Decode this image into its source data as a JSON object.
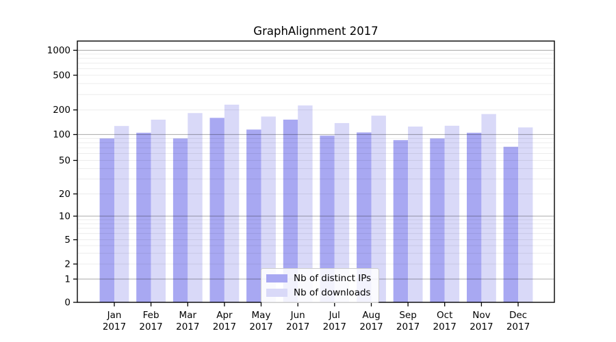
{
  "title": "GraphAlignment 2017",
  "chart_data": {
    "type": "bar",
    "title": "GraphAlignment 2017",
    "categories": [
      "Jan 2017",
      "Feb 2017",
      "Mar 2017",
      "Apr 2017",
      "May 2017",
      "Jun 2017",
      "Jul 2017",
      "Aug 2017",
      "Sep 2017",
      "Oct 2017",
      "Nov 2017",
      "Dec 2017"
    ],
    "series": [
      {
        "name": "Nb of distinct IPs",
        "color": "#a8a8f2",
        "values": [
          90,
          105,
          90,
          160,
          115,
          152,
          97,
          106,
          86,
          90,
          105,
          72
        ]
      },
      {
        "name": "Nb of downloads",
        "color": "#d9d9f8",
        "values": [
          127,
          152,
          183,
          230,
          166,
          225,
          138,
          170,
          125,
          128,
          178,
          122
        ]
      }
    ],
    "yscale": "symlog",
    "y_ticks": [
      0,
      1,
      2,
      5,
      10,
      20,
      50,
      100,
      200,
      500,
      1000
    ],
    "y_major_ticks": [
      1,
      10,
      100,
      1000
    ],
    "ylim": [
      0,
      1000
    ],
    "xlabel": "",
    "ylabel": "",
    "grid": "horizontal major+minor",
    "legend_position": "lower center inside"
  },
  "colors": {
    "axis": "#000000",
    "major_grid": "#a8a8a8",
    "minor_grid": "#e9e9e9",
    "background": "#ffffff"
  }
}
